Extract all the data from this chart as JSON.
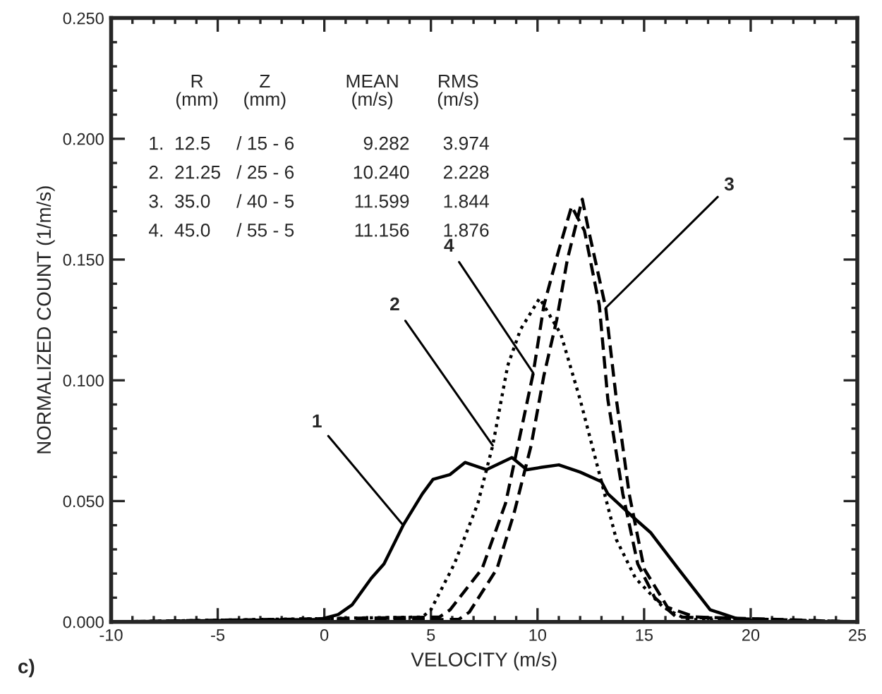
{
  "chart_data": {
    "type": "line",
    "xlabel": "VELOCITY (m/s)",
    "ylabel": "NORMALIZED COUNT (1/m/s)",
    "xlim": [
      -10,
      25
    ],
    "xticks": [
      -10,
      -5,
      0,
      5,
      10,
      15,
      20,
      25
    ],
    "ylim": [
      0,
      0.25
    ],
    "yticks": [
      {
        "value": 0,
        "label": "0.000"
      },
      {
        "value": 0.05,
        "label": "0.050"
      },
      {
        "value": 0.1,
        "label": "0.100"
      },
      {
        "value": 0.15,
        "label": "0.150"
      },
      {
        "value": 0.2,
        "label": "0.200"
      },
      {
        "value": 0.25,
        "label": "0.250"
      }
    ],
    "grid": false,
    "legend": false,
    "marker": "none",
    "series": [
      {
        "color": "#000000",
        "line_style": "solid",
        "x": [
          -10,
          -0.2,
          0.65,
          1.3,
          2.2,
          2.8,
          3.7,
          4.6,
          5.1,
          5.9,
          6.6,
          7.6,
          8.8,
          9.5,
          10.2,
          11.0,
          12.0,
          13.0,
          13.3,
          14.4,
          15.3,
          16.6,
          18.1,
          19.8,
          25
        ],
        "values": [
          0,
          0.001,
          0.003,
          0.007,
          0.018,
          0.024,
          0.04,
          0.053,
          0.059,
          0.061,
          0.066,
          0.063,
          0.068,
          0.063,
          0.064,
          0.065,
          0.062,
          0.058,
          0.053,
          0.044,
          0.037,
          0.022,
          0.005,
          0,
          0
        ]
      },
      {
        "color": "#000000",
        "line_style": "dotted",
        "x": [
          -10,
          4.6,
          5.0,
          6.1,
          7.2,
          7.9,
          8.6,
          9.2,
          10.1,
          11.1,
          12.0,
          13.0,
          13.7,
          14.6,
          15.9,
          17.0,
          25
        ],
        "values": [
          0,
          0.002,
          0.005,
          0.024,
          0.049,
          0.073,
          0.106,
          0.121,
          0.134,
          0.119,
          0.092,
          0.058,
          0.034,
          0.018,
          0.006,
          0.001,
          0
        ]
      },
      {
        "color": "#000000",
        "line_style": "dashed",
        "x": [
          -10,
          6.3,
          6.8,
          8.1,
          8.9,
          9.7,
          10.3,
          10.9,
          11.4,
          12.1,
          12.4,
          13.2,
          13.7,
          14.3,
          15.0,
          16.1,
          17.4,
          25
        ],
        "values": [
          0,
          0.001,
          0.004,
          0.022,
          0.045,
          0.073,
          0.102,
          0.125,
          0.15,
          0.175,
          0.162,
          0.13,
          0.092,
          0.053,
          0.022,
          0.006,
          0.002,
          0
        ]
      },
      {
        "color": "#000000",
        "line_style": "dashed",
        "x": [
          -10,
          5.4,
          5.9,
          7.4,
          8.5,
          9.2,
          9.8,
          10.3,
          11.0,
          11.6,
          12.2,
          12.9,
          13.3,
          14.0,
          14.7,
          15.5,
          16.5,
          25
        ],
        "values": [
          0,
          0.002,
          0.005,
          0.022,
          0.049,
          0.078,
          0.103,
          0.131,
          0.154,
          0.172,
          0.162,
          0.131,
          0.092,
          0.053,
          0.024,
          0.01,
          0.002,
          0
        ]
      }
    ],
    "annotations": [
      "R\n(mm)",
      "Z\n(mm)",
      "MEAN\n(m/s)",
      "RMS\n(m/s)",
      "1.  12.5",
      "/ 15 - 6",
      "9.282",
      "3.974",
      "2.  21.25",
      "/ 25 - 6",
      "10.240",
      "2.228",
      "3.  35.0",
      "/ 40 - 5",
      "11.599",
      "1.844",
      "4.  45.0",
      "/ 55 - 5",
      "11.156",
      "1.876",
      "c)",
      {
        "text": "1",
        "x": 3.7,
        "y": 0.04
      },
      {
        "text": "2",
        "x": 7.9,
        "y": 0.073
      },
      {
        "text": "4",
        "x": 9.8,
        "y": 0.103
      },
      {
        "text": "3",
        "x": 13.2,
        "y": 0.13
      }
    ]
  }
}
